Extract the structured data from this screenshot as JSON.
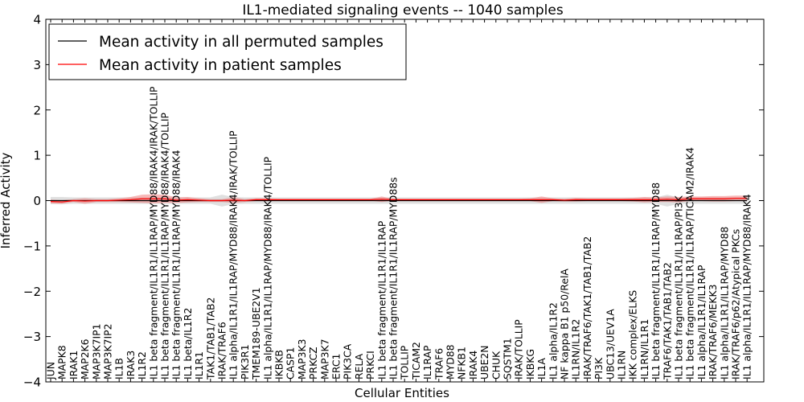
{
  "chart_data": {
    "type": "line",
    "title": "IL1-mediated signaling events -- 1040 samples",
    "xlabel": "Cellular Entities",
    "ylabel": "Inferred Activity",
    "ylim": [
      -4,
      4
    ],
    "yticks": [
      "4",
      "3",
      "2",
      "1",
      "0",
      "−1",
      "−2",
      "−3",
      "−4"
    ],
    "legend_position": "top-left",
    "colors": {
      "permuted": "#000000",
      "patient": "#ff0000",
      "patient_band": "#f08080",
      "permuted_band": "#bbbbbb"
    },
    "categories": [
      "JUN",
      "MAPK8",
      "IRAK1",
      "MAP2K6",
      "MAP3K7IP1",
      "MAP3K7IP2",
      "IL1B",
      "IRAK3",
      "IL1R2",
      "IL1 beta fragment/IL1R1/IL1RAP/MYD88/IRAK4/IRAK/TOLLIP",
      "IL1 beta fragment/IL1R1/IL1RAP/MYD88/IRAK4/TOLLIP",
      "IL1 beta fragment/IL1R1/IL1RAP/MYD88/IRAK4",
      "IL1 beta/IL1R2",
      "IL1R1",
      "TAK1/TAB1/TAB2",
      "IRAK/TRAF6",
      "IL1 alpha/IL1R1/IL1RAP/MYD88/IRAK4/IRAK/TOLLIP",
      "PIK3R1",
      "TMEM189-UBE2V1",
      "IL1 alpha/IL1R1/IL1RAP/MYD88/IRAK4/TOLLIP",
      "IKBKB",
      "CASP1",
      "MAP3K3",
      "PRKCZ",
      "MAP3K7",
      "ERC1",
      "PIK3CA",
      "RELA",
      "PRKCI",
      "IL1 beta fragment/IL1R1/IL1RAP",
      "IL1 beta fragment/IL1R1/IL1RAP/MYD88s",
      "TOLLIP",
      "TICAM2",
      "IL1RAP",
      "TRAF6",
      "MYD88",
      "NFKB1",
      "IRAK4",
      "UBE2N",
      "CHUK",
      "SQSTM1",
      "IRAK/TOLLIP",
      "IKBKG",
      "IL1A",
      "IL1 alpha/IL1R2",
      "NF kappa B1 p50/RelA",
      "IL1RN/IL1R2",
      "IRAK/TRAF6/TAK1/TAB1/TAB2",
      "PI3K",
      "UBC13/UEV1A",
      "IL1RN",
      "IKK complex/ELKS",
      "IL1RN/IL1R1",
      "IL1 beta fragment/IL1R1/IL1RAP/MYD88",
      "TRAF6/TAK1/TAB1/TAB2",
      "IL1 beta fragment/IL1R1/IL1RAP/PI3K",
      "IL1 beta fragment/IL1R1/IL1RAP/TICAM2/IRAK4",
      "IL1 alpha/IL1R1/IL1RAP",
      "IRAK/TRAF6/MEKK3",
      "IL1 alpha/IL1R1/IL1RAP/MYD88",
      "IRAK/TRAF6/p62/Atypical PKCs",
      "IL1 alpha/IL1R1/IL1RAP/MYD88/IRAK4"
    ],
    "series": [
      {
        "name": "Mean activity in all permuted samples",
        "values": [
          0.0,
          0.0,
          0.0,
          0.0,
          0.0,
          0.0,
          0.0,
          0.0,
          0.0,
          0.0,
          0.0,
          0.0,
          0.0,
          0.0,
          0.0,
          0.0,
          0.0,
          0.0,
          0.0,
          0.0,
          0.0,
          0.0,
          0.0,
          0.0,
          0.0,
          0.0,
          0.0,
          0.0,
          0.0,
          0.0,
          0.0,
          0.0,
          0.0,
          0.0,
          0.0,
          0.0,
          0.0,
          0.0,
          0.0,
          0.0,
          0.0,
          0.0,
          0.0,
          0.0,
          0.0,
          0.0,
          0.0,
          0.0,
          0.0,
          0.0,
          0.0,
          0.0,
          0.0,
          0.0,
          0.0,
          0.0,
          0.0,
          0.0,
          0.0,
          0.0,
          0.0,
          0.0
        ],
        "spread": [
          0.08,
          0.08,
          0.07,
          0.07,
          0.07,
          0.07,
          0.07,
          0.07,
          0.07,
          0.07,
          0.07,
          0.07,
          0.07,
          0.07,
          0.07,
          0.13,
          0.08,
          0.07,
          0.07,
          0.07,
          0.07,
          0.07,
          0.07,
          0.07,
          0.07,
          0.07,
          0.07,
          0.07,
          0.07,
          0.07,
          0.07,
          0.07,
          0.07,
          0.07,
          0.07,
          0.07,
          0.07,
          0.07,
          0.07,
          0.07,
          0.07,
          0.07,
          0.07,
          0.07,
          0.07,
          0.07,
          0.07,
          0.07,
          0.07,
          0.07,
          0.07,
          0.07,
          0.07,
          0.07,
          0.13,
          0.07,
          0.07,
          0.07,
          0.07,
          0.07,
          0.07,
          0.07
        ]
      },
      {
        "name": "Mean activity in patient samples",
        "values": [
          -0.02,
          -0.03,
          0.0,
          -0.01,
          0.0,
          0.0,
          0.01,
          0.02,
          0.04,
          0.04,
          0.04,
          0.01,
          0.02,
          0.01,
          0.0,
          0.0,
          0.01,
          0.0,
          0.02,
          0.02,
          0.02,
          0.02,
          0.02,
          0.02,
          0.02,
          0.02,
          0.02,
          0.02,
          0.02,
          0.03,
          0.02,
          0.02,
          0.02,
          0.02,
          0.02,
          0.02,
          0.02,
          0.02,
          0.02,
          0.02,
          0.02,
          0.02,
          0.02,
          0.02,
          0.02,
          0.01,
          0.02,
          0.02,
          0.02,
          0.02,
          0.02,
          0.02,
          0.02,
          0.02,
          0.03,
          0.02,
          0.04,
          0.04,
          0.04,
          0.04,
          0.05,
          0.05
        ],
        "spread": [
          0.04,
          0.04,
          0.03,
          0.06,
          0.03,
          0.03,
          0.04,
          0.06,
          0.09,
          0.1,
          0.09,
          0.06,
          0.06,
          0.04,
          0.03,
          0.03,
          0.06,
          0.03,
          0.03,
          0.03,
          0.02,
          0.02,
          0.02,
          0.02,
          0.02,
          0.02,
          0.02,
          0.02,
          0.02,
          0.06,
          0.02,
          0.02,
          0.02,
          0.02,
          0.02,
          0.02,
          0.02,
          0.02,
          0.02,
          0.02,
          0.02,
          0.02,
          0.03,
          0.07,
          0.03,
          0.03,
          0.04,
          0.03,
          0.03,
          0.03,
          0.03,
          0.04,
          0.06,
          0.05,
          0.06,
          0.06,
          0.05,
          0.05,
          0.06,
          0.06,
          0.06,
          0.06
        ]
      }
    ]
  }
}
